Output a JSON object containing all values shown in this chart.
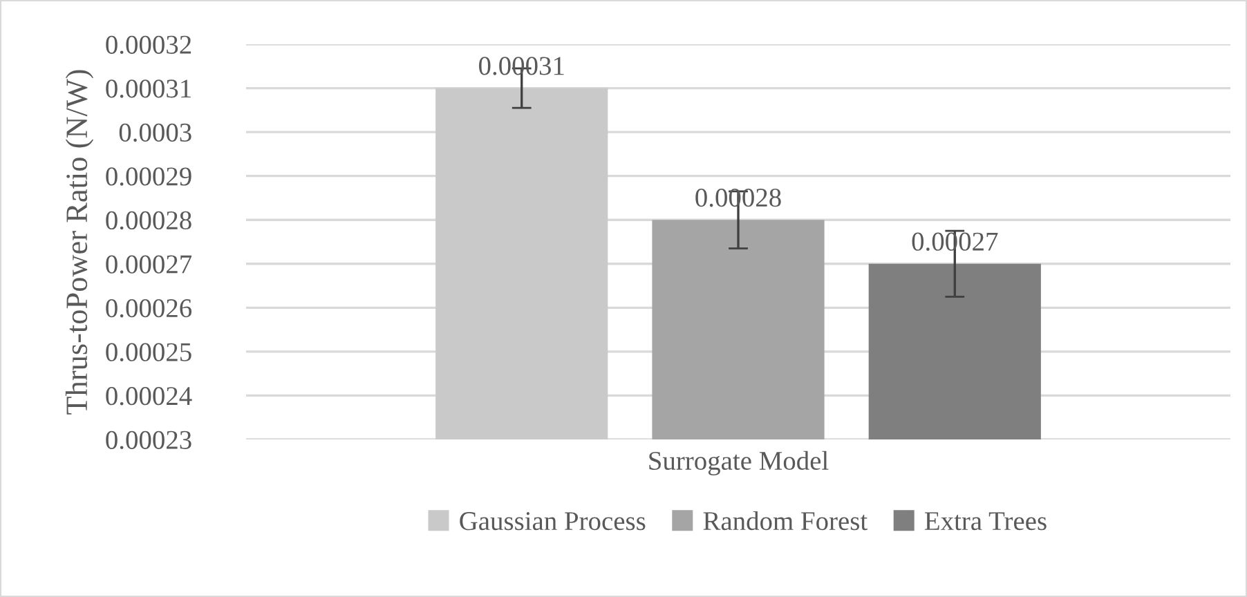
{
  "chart_data": {
    "type": "bar",
    "xlabel": "Surrogate Model",
    "ylabel": "Thrus-toPower Ratio (N/W)",
    "categories": [
      null
    ],
    "series": [
      {
        "name": "Gaussian Process",
        "color": "#c9c9c9",
        "values": [
          0.00031
        ],
        "errors": [
          4.5e-06
        ]
      },
      {
        "name": "Random Forest",
        "color": "#a5a5a5",
        "values": [
          0.00028
        ],
        "errors": [
          6.5e-06
        ]
      },
      {
        "name": "Extra Trees",
        "color": "#7f7f7f",
        "values": [
          0.00027
        ],
        "errors": [
          7.5e-06
        ]
      }
    ],
    "ylim": [
      0.00023,
      0.00032
    ],
    "yticks": [
      0.00023,
      0.00024,
      0.00025,
      0.00026,
      0.00027,
      0.00028,
      0.00029,
      0.0003,
      0.00031,
      0.00032
    ],
    "grid": "y",
    "legend": "bottom",
    "data_labels": true,
    "tick_labels": "y"
  }
}
